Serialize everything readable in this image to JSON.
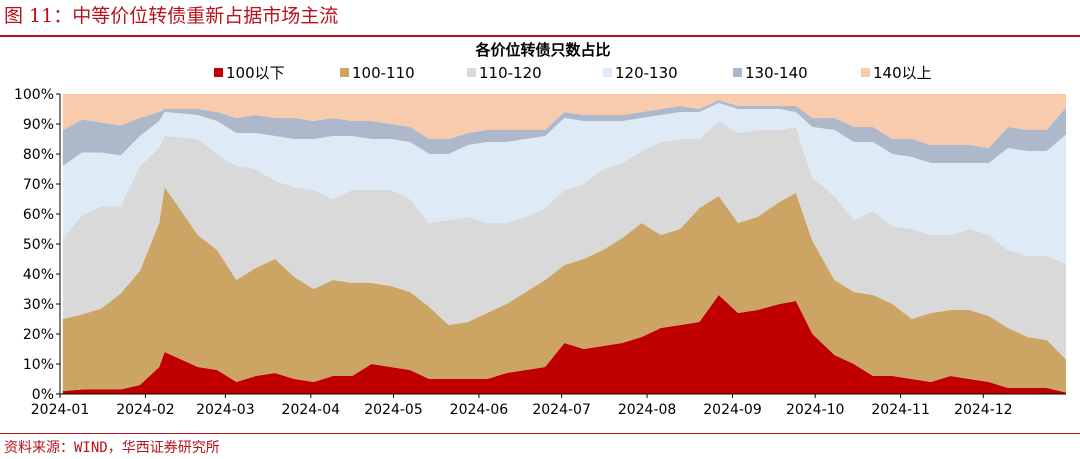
{
  "figure": {
    "title": "图 11：中等价位转债重新占据市场主流",
    "source": "资料来源：WIND，华西证券研究所"
  },
  "chart_data": {
    "type": "area",
    "stacked": true,
    "title": "各价位转债只数占比",
    "xlabel": "",
    "ylabel": "",
    "ylim": [
      0,
      100
    ],
    "y_ticks": [
      "0%",
      "10%",
      "20%",
      "30%",
      "40%",
      "50%",
      "60%",
      "70%",
      "80%",
      "90%",
      "100%"
    ],
    "x_ticks": [
      "2024-01",
      "2024-02",
      "2024-03",
      "2024-04",
      "2024-05",
      "2024-06",
      "2024-07",
      "2024-08",
      "2024-09",
      "2024-10",
      "2024-11",
      "2024-12"
    ],
    "grid": false,
    "legend_position": "top",
    "x": [
      "2024-01-02",
      "2024-01-09",
      "2024-01-16",
      "2024-01-23",
      "2024-01-30",
      "2024-02-06",
      "2024-02-08",
      "2024-02-20",
      "2024-02-27",
      "2024-03-05",
      "2024-03-12",
      "2024-03-19",
      "2024-03-26",
      "2024-04-02",
      "2024-04-09",
      "2024-04-16",
      "2024-04-23",
      "2024-04-30",
      "2024-05-07",
      "2024-05-14",
      "2024-05-21",
      "2024-05-28",
      "2024-06-04",
      "2024-06-11",
      "2024-06-18",
      "2024-06-25",
      "2024-07-02",
      "2024-07-09",
      "2024-07-16",
      "2024-07-23",
      "2024-07-30",
      "2024-08-06",
      "2024-08-13",
      "2024-08-20",
      "2024-08-27",
      "2024-09-03",
      "2024-09-10",
      "2024-09-18",
      "2024-09-24",
      "2024-09-30",
      "2024-10-08",
      "2024-10-15",
      "2024-10-22",
      "2024-10-29",
      "2024-11-05",
      "2024-11-12",
      "2024-11-19",
      "2024-11-26",
      "2024-12-03",
      "2024-12-10",
      "2024-12-17",
      "2024-12-24",
      "2024-12-31"
    ],
    "series": [
      {
        "name": "100以下",
        "color": "#c00000",
        "values": [
          1,
          1.5,
          1.5,
          1.5,
          3,
          9,
          14,
          9,
          8,
          4,
          6,
          7,
          5,
          4,
          6,
          6,
          10,
          9,
          8,
          5,
          5,
          5,
          5,
          7,
          8,
          9,
          17,
          15,
          16,
          17,
          19,
          22,
          23,
          24,
          33,
          27,
          28,
          30,
          31,
          20,
          13,
          10,
          6,
          6,
          5,
          4,
          6,
          5,
          4,
          2,
          2,
          2,
          0.5
        ]
      },
      {
        "name": "100-110",
        "color": "#cca464",
        "values": [
          24,
          25,
          27,
          32,
          38,
          48,
          55,
          44,
          40,
          34,
          36,
          38,
          34,
          31,
          32,
          31,
          27,
          27,
          26,
          24,
          18,
          19,
          22,
          23,
          26,
          29,
          26,
          30,
          32,
          35,
          38,
          31,
          32,
          38,
          33,
          30,
          31,
          34,
          36,
          31,
          25,
          24,
          27,
          24,
          20,
          23,
          22,
          23,
          22,
          20,
          17,
          16,
          11
        ]
      },
      {
        "name": "110-120",
        "color": "#d9d9d9",
        "values": [
          27,
          33,
          34,
          29,
          35,
          25,
          17,
          32,
          32,
          38,
          33,
          26,
          30,
          33,
          27,
          31,
          31,
          32,
          31,
          28,
          35,
          35,
          30,
          27,
          25,
          24,
          25,
          25,
          27,
          25,
          24,
          31,
          30,
          23,
          25,
          30,
          29,
          24,
          22,
          21,
          28,
          24,
          28,
          26,
          30,
          26,
          25,
          27,
          27,
          26,
          27,
          28,
          32
        ]
      },
      {
        "name": "120-130",
        "color": "#deebf7",
        "values": [
          24,
          21,
          18,
          17,
          10,
          9,
          8,
          8,
          11,
          11,
          12,
          15,
          16,
          17,
          21,
          18,
          17,
          17,
          19,
          23,
          22,
          24,
          27,
          27,
          26,
          24,
          24,
          21,
          16,
          14,
          11,
          9,
          9,
          9,
          6,
          8,
          7,
          7,
          5,
          17,
          22,
          26,
          23,
          24,
          24,
          24,
          24,
          22,
          24,
          34,
          35,
          35,
          43
        ]
      },
      {
        "name": "130-140",
        "color": "#adb9ca",
        "values": [
          12,
          11,
          10,
          10,
          6,
          3,
          1,
          2,
          3,
          5,
          6,
          6,
          7,
          6,
          6,
          5,
          6,
          5,
          5,
          5,
          5,
          4,
          4,
          4,
          3,
          2,
          2,
          2,
          2,
          2,
          2,
          2,
          2,
          1,
          1,
          1,
          1,
          1,
          2,
          3,
          4,
          5,
          5,
          5,
          6,
          6,
          6,
          6,
          5,
          7,
          7,
          7,
          9
        ]
      },
      {
        "name": "140以上",
        "color": "#f8cbad",
        "values": [
          12,
          8.5,
          9.5,
          10.5,
          8,
          6,
          5,
          5,
          6,
          8,
          7,
          8,
          8,
          9,
          8,
          9,
          9,
          10,
          11,
          15,
          15,
          13,
          12,
          12,
          12,
          12,
          6,
          7,
          7,
          7,
          6,
          5,
          4,
          5,
          2,
          4,
          4,
          4,
          4,
          8,
          8,
          11,
          11,
          15,
          15,
          17,
          17,
          17,
          18,
          11,
          12,
          12,
          3.5
        ]
      }
    ]
  }
}
